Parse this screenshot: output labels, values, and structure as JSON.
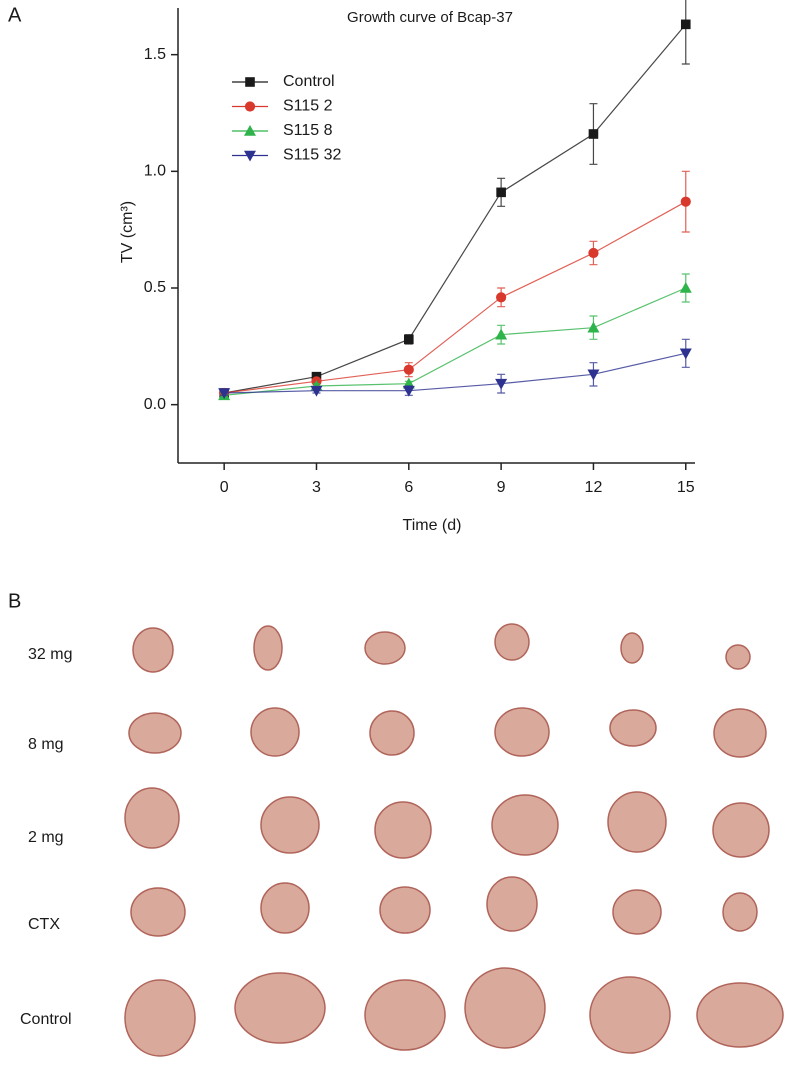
{
  "panel_labels": [
    "A",
    "B"
  ],
  "chart_data": {
    "type": "line",
    "title": "Growth curve of Bcap-37",
    "x_label": "Time (d)",
    "y_label": "TV (cm³)",
    "x": [
      0,
      3,
      6,
      9,
      12,
      15
    ],
    "series": [
      {
        "name": "Control",
        "color": "#1a1a1a",
        "marker": "square",
        "values": [
          0.05,
          0.12,
          0.28,
          0.91,
          1.16,
          1.63
        ],
        "errors": [
          0.01,
          0.01,
          0.02,
          0.06,
          0.13,
          0.17
        ]
      },
      {
        "name": "S115 2",
        "color": "#d9382c",
        "marker": "circle",
        "values": [
          0.05,
          0.1,
          0.15,
          0.46,
          0.65,
          0.87
        ],
        "errors": [
          0.01,
          0.01,
          0.03,
          0.04,
          0.05,
          0.13
        ]
      },
      {
        "name": "S115 8",
        "color": "#2fb34b",
        "marker": "triangle-up",
        "values": [
          0.04,
          0.08,
          0.09,
          0.3,
          0.33,
          0.5
        ],
        "errors": [
          0.01,
          0.01,
          0.01,
          0.04,
          0.05,
          0.06
        ]
      },
      {
        "name": "S115 32",
        "color": "#2d3290",
        "marker": "triangle-down",
        "values": [
          0.05,
          0.06,
          0.06,
          0.09,
          0.13,
          0.22
        ],
        "errors": [
          0.01,
          0.01,
          0.02,
          0.04,
          0.05,
          0.06
        ]
      }
    ],
    "xlim": [
      -1.5,
      15.3
    ],
    "ylim": [
      -0.25,
      1.7
    ],
    "xticks": [
      0,
      3,
      6,
      9,
      12,
      15
    ],
    "yticks": [
      {
        "value": 0,
        "label": "0.0"
      },
      0.5,
      {
        "value": 1,
        "label": "1.0"
      },
      1.5
    ],
    "legend": "upper left"
  },
  "photo_rows": [
    "32 mg",
    "8 mg",
    "2 mg",
    "CTX",
    "Control"
  ]
}
